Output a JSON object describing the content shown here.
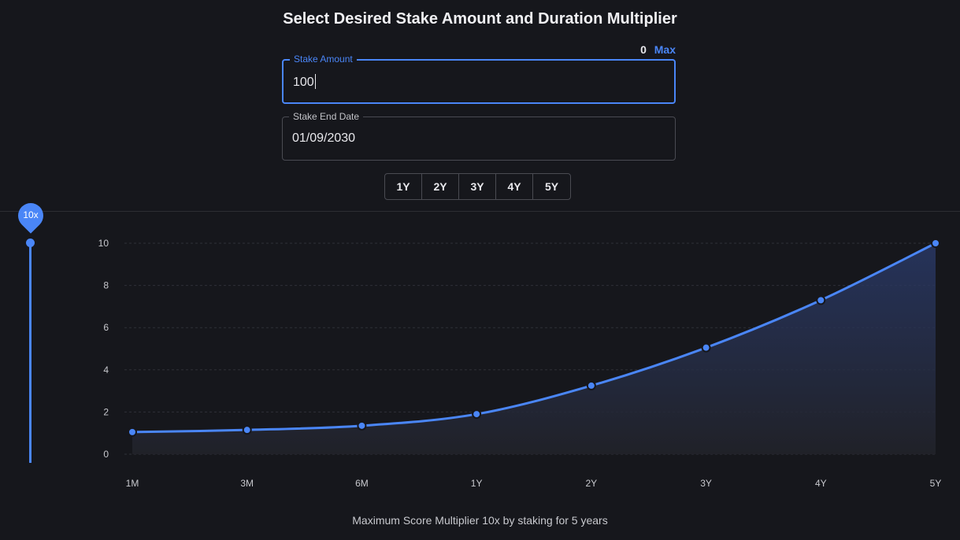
{
  "header": {
    "title": "Select Desired Stake Amount and Duration Multiplier"
  },
  "balance": {
    "value": "0",
    "max_label": "Max"
  },
  "stake_amount": {
    "label": "Stake Amount",
    "value": "100"
  },
  "stake_end_date": {
    "label": "Stake End Date",
    "value": "01/09/2030"
  },
  "range_buttons": [
    "1Y",
    "2Y",
    "3Y",
    "4Y",
    "5Y"
  ],
  "slider": {
    "label": "10x",
    "value": 10,
    "min": 0,
    "max": 10
  },
  "colors": {
    "accent": "#4a86f7",
    "background": "#16171c"
  },
  "chart_data": {
    "type": "area",
    "categories": [
      "1M",
      "3M",
      "6M",
      "1Y",
      "2Y",
      "3Y",
      "4Y",
      "5Y"
    ],
    "values": [
      1.05,
      1.15,
      1.35,
      1.9,
      3.25,
      5.05,
      7.3,
      10
    ],
    "y_ticks": [
      "0",
      "2",
      "4",
      "6",
      "8",
      "10"
    ],
    "ylim": [
      0,
      10
    ],
    "grid": "horizontal dashed"
  },
  "footer": {
    "text": "Maximum Score Multiplier 10x by staking for 5 years"
  }
}
